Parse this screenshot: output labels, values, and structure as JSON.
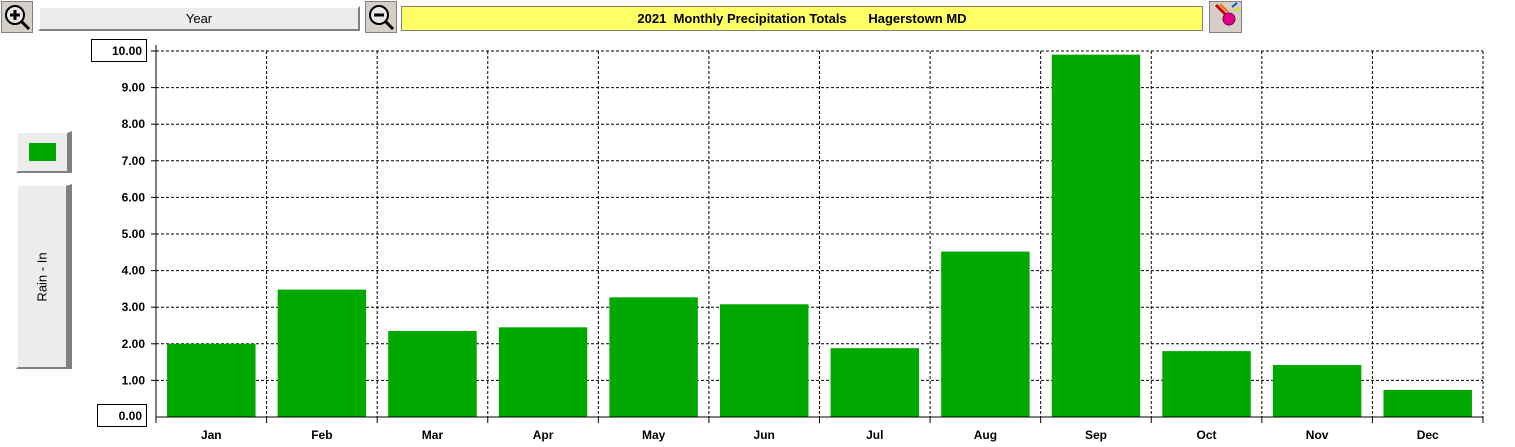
{
  "toolbar": {
    "zoom_in_icon": "zoom-in-icon",
    "zoom_out_icon": "zoom-out-icon",
    "period_label": "Year",
    "title": "2021  Monthly Precipitation Totals      Hagerstown MD",
    "tool_icon": "paint-tool-icon"
  },
  "legend": {
    "series_label": "Rain - In",
    "swatch_color": "#00a800"
  },
  "colors": {
    "bar": "#00a800",
    "title_bg": "#ffff66"
  },
  "chart_data": {
    "type": "bar",
    "title": "2021  Monthly Precipitation Totals      Hagerstown MD",
    "xlabel": "",
    "ylabel": "Rain - In",
    "ylim": [
      0,
      10
    ],
    "y_max_label": "10.00",
    "y_min_label": "0.00",
    "y_tick_labels": [
      "1.00",
      "2.00",
      "3.00",
      "4.00",
      "5.00",
      "6.00",
      "7.00",
      "8.00",
      "9.00"
    ],
    "y_tick_values": [
      1,
      2,
      3,
      4,
      5,
      6,
      7,
      8,
      9
    ],
    "grid": true,
    "categories": [
      "Jan",
      "Feb",
      "Mar",
      "Apr",
      "May",
      "Jun",
      "Jul",
      "Aug",
      "Sep",
      "Oct",
      "Nov",
      "Dec"
    ],
    "values": [
      2.0,
      3.48,
      2.35,
      2.45,
      3.27,
      3.08,
      1.88,
      4.52,
      9.9,
      1.8,
      1.42,
      0.74
    ]
  }
}
